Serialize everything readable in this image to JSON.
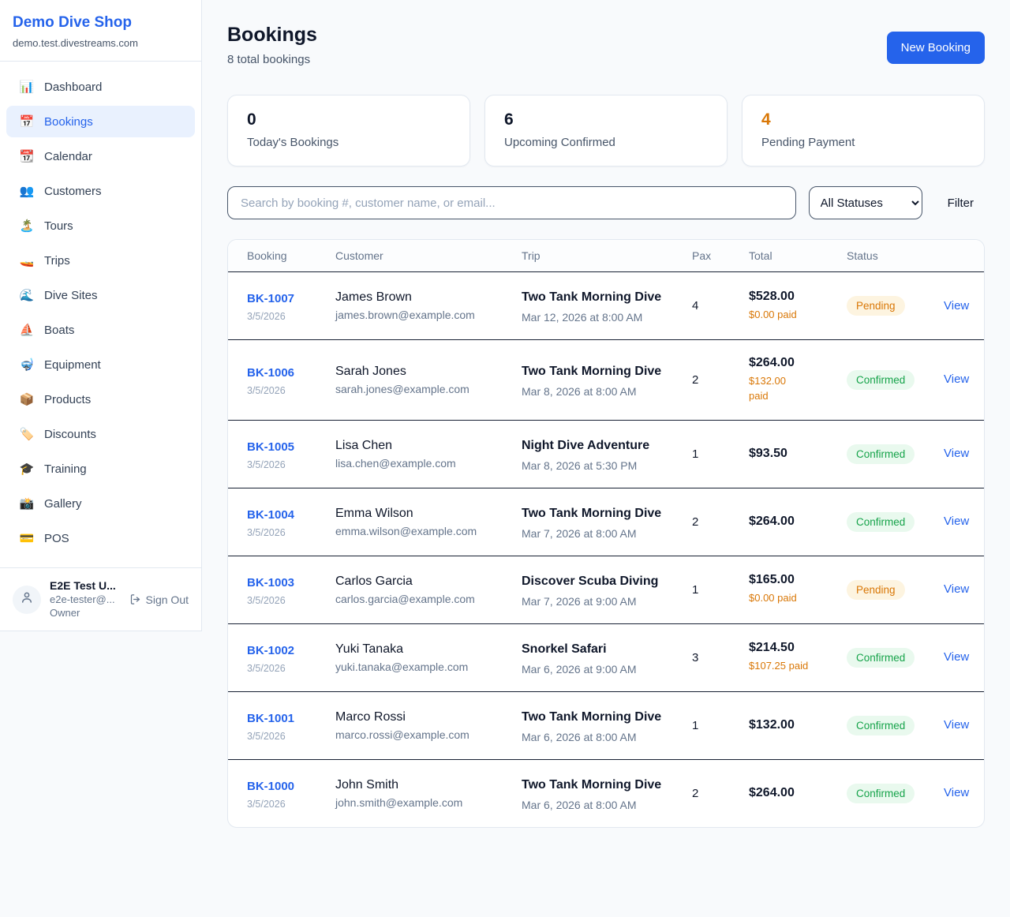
{
  "colors": {
    "brand_blue": "#2563eb",
    "pending_orange": "#d97706",
    "confirmed_green": "#16a34a",
    "pending_bg": "#fdf4e0",
    "confirmed_bg": "#e9f9ee",
    "page_bg": "#f8fafc"
  },
  "sidebar": {
    "brand": "Demo Dive Shop",
    "domain": "demo.test.divestreams.com",
    "items": [
      {
        "icon": "📊",
        "icon_name": "bar-chart-icon",
        "label": "Dashboard",
        "active": false
      },
      {
        "icon": "📅",
        "icon_name": "calendar-icon",
        "label": "Bookings",
        "active": true
      },
      {
        "icon": "📆",
        "icon_name": "tear-off-calendar-icon",
        "label": "Calendar",
        "active": false
      },
      {
        "icon": "👥",
        "icon_name": "people-icon",
        "label": "Customers",
        "active": false
      },
      {
        "icon": "🏝️",
        "icon_name": "island-icon",
        "label": "Tours",
        "active": false
      },
      {
        "icon": "🚤",
        "icon_name": "speedboat-icon",
        "label": "Trips",
        "active": false
      },
      {
        "icon": "🌊",
        "icon_name": "wave-icon",
        "label": "Dive Sites",
        "active": false
      },
      {
        "icon": "⛵",
        "icon_name": "sailboat-icon",
        "label": "Boats",
        "active": false
      },
      {
        "icon": "🤿",
        "icon_name": "diving-mask-icon",
        "label": "Equipment",
        "active": false
      },
      {
        "icon": "📦",
        "icon_name": "package-icon",
        "label": "Products",
        "active": false
      },
      {
        "icon": "🏷️",
        "icon_name": "tag-icon",
        "label": "Discounts",
        "active": false
      },
      {
        "icon": "🎓",
        "icon_name": "graduation-cap-icon",
        "label": "Training",
        "active": false
      },
      {
        "icon": "📸",
        "icon_name": "camera-icon",
        "label": "Gallery",
        "active": false
      },
      {
        "icon": "💳",
        "icon_name": "credit-card-icon",
        "label": "POS",
        "active": false
      }
    ],
    "user": {
      "name": "E2E Test U...",
      "email": "e2e-tester@...",
      "role": "Owner",
      "sign_out_label": "Sign Out"
    }
  },
  "header": {
    "title": "Bookings",
    "subtitle": "8 total bookings",
    "new_booking_label": "New Booking"
  },
  "stats": [
    {
      "value": "0",
      "label": "Today's Bookings",
      "accent": false
    },
    {
      "value": "6",
      "label": "Upcoming Confirmed",
      "accent": false
    },
    {
      "value": "4",
      "label": "Pending Payment",
      "accent": true
    }
  ],
  "controls": {
    "search_placeholder": "Search by booking #, customer name, or email...",
    "status_filter_value": "All Statuses",
    "filter_label": "Filter"
  },
  "table": {
    "columns": [
      "Booking",
      "Customer",
      "Trip",
      "Pax",
      "Total",
      "Status"
    ],
    "view_label": "View",
    "rows": [
      {
        "id": "BK-1007",
        "id_two_lines": false,
        "date": "3/5/2026",
        "customer": "James Brown",
        "email": "james.brown@example.com",
        "trip": "Two Tank Morning Dive",
        "trip_time": "Mar 12, 2026 at 8:00 AM",
        "pax": "4",
        "total": "$528.00",
        "paid": "$0.00 paid",
        "paid_two_lines": false,
        "status": "Pending"
      },
      {
        "id": "BK-1006",
        "id_two_lines": true,
        "date": "3/5/2026",
        "customer": "Sarah Jones",
        "email": "sarah.jones@example.com",
        "trip": "Two Tank Morning Dive",
        "trip_time": "Mar 8, 2026 at 8:00 AM",
        "pax": "2",
        "total": "$264.00",
        "paid": "$132.00 paid",
        "paid_two_lines": true,
        "status": "Confirmed"
      },
      {
        "id": "BK-1005",
        "id_two_lines": true,
        "date": "3/5/2026",
        "customer": "Lisa Chen",
        "email": "lisa.chen@example.com",
        "trip": "Night Dive Adventure",
        "trip_time": "Mar 8, 2026 at 5:30 PM",
        "pax": "1",
        "total": "$93.50",
        "paid": null,
        "paid_two_lines": false,
        "status": "Confirmed"
      },
      {
        "id": "BK-1004",
        "id_two_lines": true,
        "date": "3/5/2026",
        "customer": "Emma Wilson",
        "email": "emma.wilson@example.com",
        "trip": "Two Tank Morning Dive",
        "trip_time": "Mar 7, 2026 at 8:00 AM",
        "pax": "2",
        "total": "$264.00",
        "paid": null,
        "paid_two_lines": false,
        "status": "Confirmed"
      },
      {
        "id": "BK-1003",
        "id_two_lines": true,
        "date": "3/5/2026",
        "customer": "Carlos Garcia",
        "email": "carlos.garcia@example.com",
        "trip": "Discover Scuba Diving",
        "trip_time": "Mar 7, 2026 at 9:00 AM",
        "pax": "1",
        "total": "$165.00",
        "paid": "$0.00 paid",
        "paid_two_lines": false,
        "status": "Pending"
      },
      {
        "id": "BK-1002",
        "id_two_lines": true,
        "date": "3/5/2026",
        "customer": "Yuki Tanaka",
        "email": "yuki.tanaka@example.com",
        "trip": "Snorkel Safari",
        "trip_time": "Mar 6, 2026 at 9:00 AM",
        "pax": "3",
        "total": "$214.50",
        "paid": "$107.25 paid",
        "paid_two_lines": false,
        "status": "Confirmed"
      },
      {
        "id": "BK-1001",
        "id_two_lines": false,
        "date": "3/5/2026",
        "customer": "Marco Rossi",
        "email": "marco.rossi@example.com",
        "trip": "Two Tank Morning Dive",
        "trip_time": "Mar 6, 2026 at 8:00 AM",
        "pax": "1",
        "total": "$132.00",
        "paid": null,
        "paid_two_lines": false,
        "status": "Confirmed"
      },
      {
        "id": "BK-1000",
        "id_two_lines": true,
        "date": "3/5/2026",
        "customer": "John Smith",
        "email": "john.smith@example.com",
        "trip": "Two Tank Morning Dive",
        "trip_time": "Mar 6, 2026 at 8:00 AM",
        "pax": "2",
        "total": "$264.00",
        "paid": null,
        "paid_two_lines": false,
        "status": "Confirmed"
      }
    ]
  }
}
